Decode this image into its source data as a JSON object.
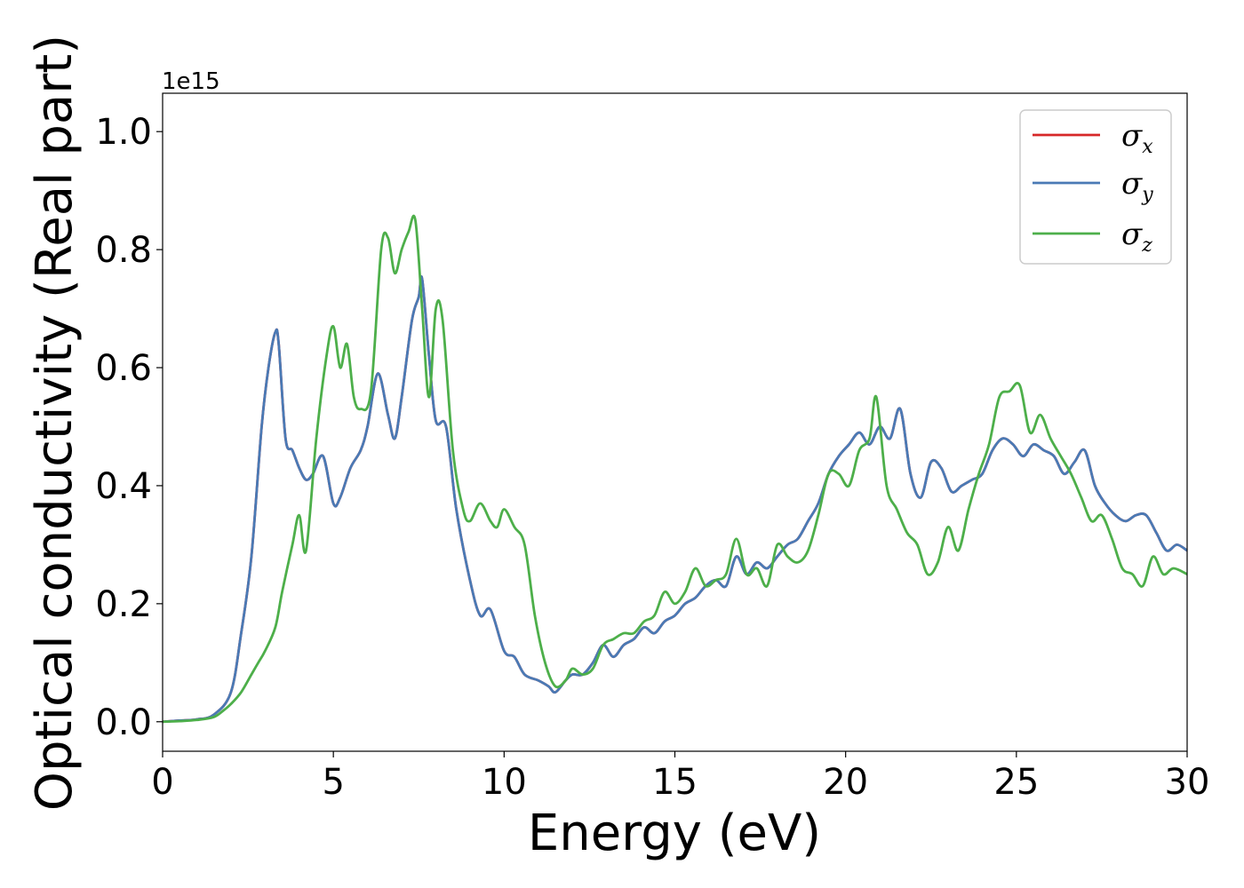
{
  "chart_data": {
    "type": "line",
    "xlabel": "Energy (eV)",
    "ylabel": "Optical conductivity (Real part)",
    "y_offset_text": "1e15",
    "xlim": [
      0,
      30
    ],
    "ylim": [
      -0.05,
      1.065
    ],
    "x_ticks": [
      0,
      5,
      10,
      15,
      20,
      25,
      30
    ],
    "x_tick_labels": [
      "0",
      "5",
      "10",
      "15",
      "20",
      "25",
      "30"
    ],
    "y_ticks": [
      0.0,
      0.2,
      0.4,
      0.6,
      0.8,
      1.0
    ],
    "y_tick_labels": [
      "0.0",
      "0.2",
      "0.4",
      "0.6",
      "0.8",
      "1.0"
    ],
    "grid": false,
    "legend_position": "top-right",
    "series": [
      {
        "name": "σx",
        "symbol": "σ",
        "subscript": "x",
        "color": "#d62728",
        "x": [
          0,
          0.5,
          1,
          1.5,
          2,
          2.3,
          2.6,
          2.9,
          3.1,
          3.3,
          3.4,
          3.6,
          3.8,
          4,
          4.2,
          4.4,
          4.7,
          5,
          5.2,
          5.5,
          5.8,
          6,
          6.3,
          6.6,
          6.8,
          7,
          7.3,
          7.5,
          7.6,
          7.8,
          8,
          8.3,
          8.6,
          9,
          9.3,
          9.6,
          10,
          10.3,
          10.6,
          11,
          11.3,
          11.5,
          11.8,
          12,
          12.3,
          12.6,
          12.9,
          13.2,
          13.5,
          13.8,
          14.1,
          14.4,
          14.7,
          15,
          15.3,
          15.6,
          15.9,
          16.2,
          16.5,
          16.8,
          17.1,
          17.4,
          17.7,
          18,
          18.3,
          18.6,
          18.9,
          19.2,
          19.5,
          19.8,
          20.1,
          20.4,
          20.7,
          21,
          21.3,
          21.6,
          21.9,
          22.2,
          22.5,
          22.8,
          23.1,
          23.4,
          23.7,
          24,
          24.3,
          24.6,
          24.9,
          25.2,
          25.5,
          25.8,
          26.1,
          26.4,
          26.7,
          27,
          27.3,
          27.6,
          27.9,
          28.2,
          28.5,
          28.8,
          29.1,
          29.4,
          29.7,
          30
        ],
        "y": [
          0,
          0.002,
          0.004,
          0.012,
          0.05,
          0.15,
          0.28,
          0.5,
          0.6,
          0.66,
          0.64,
          0.48,
          0.46,
          0.43,
          0.41,
          0.42,
          0.45,
          0.37,
          0.38,
          0.43,
          0.46,
          0.5,
          0.59,
          0.52,
          0.48,
          0.55,
          0.68,
          0.72,
          0.75,
          0.62,
          0.51,
          0.5,
          0.36,
          0.24,
          0.18,
          0.19,
          0.12,
          0.11,
          0.08,
          0.07,
          0.06,
          0.05,
          0.07,
          0.08,
          0.08,
          0.1,
          0.13,
          0.11,
          0.13,
          0.14,
          0.16,
          0.15,
          0.17,
          0.18,
          0.2,
          0.21,
          0.23,
          0.24,
          0.23,
          0.28,
          0.25,
          0.27,
          0.26,
          0.28,
          0.3,
          0.31,
          0.34,
          0.37,
          0.42,
          0.45,
          0.47,
          0.49,
          0.47,
          0.5,
          0.48,
          0.53,
          0.42,
          0.38,
          0.44,
          0.43,
          0.39,
          0.4,
          0.41,
          0.42,
          0.46,
          0.48,
          0.47,
          0.45,
          0.47,
          0.46,
          0.45,
          0.42,
          0.44,
          0.46,
          0.4,
          0.37,
          0.35,
          0.34,
          0.35,
          0.35,
          0.32,
          0.29,
          0.3,
          0.29
        ]
      },
      {
        "name": "σy",
        "symbol": "σ",
        "subscript": "y",
        "color": "#4a7ab5",
        "x": [
          0,
          0.5,
          1,
          1.5,
          2,
          2.3,
          2.6,
          2.9,
          3.1,
          3.3,
          3.4,
          3.6,
          3.8,
          4,
          4.2,
          4.4,
          4.7,
          5,
          5.2,
          5.5,
          5.8,
          6,
          6.3,
          6.6,
          6.8,
          7,
          7.3,
          7.5,
          7.6,
          7.8,
          8,
          8.3,
          8.6,
          9,
          9.3,
          9.6,
          10,
          10.3,
          10.6,
          11,
          11.3,
          11.5,
          11.8,
          12,
          12.3,
          12.6,
          12.9,
          13.2,
          13.5,
          13.8,
          14.1,
          14.4,
          14.7,
          15,
          15.3,
          15.6,
          15.9,
          16.2,
          16.5,
          16.8,
          17.1,
          17.4,
          17.7,
          18,
          18.3,
          18.6,
          18.9,
          19.2,
          19.5,
          19.8,
          20.1,
          20.4,
          20.7,
          21,
          21.3,
          21.6,
          21.9,
          22.2,
          22.5,
          22.8,
          23.1,
          23.4,
          23.7,
          24,
          24.3,
          24.6,
          24.9,
          25.2,
          25.5,
          25.8,
          26.1,
          26.4,
          26.7,
          27,
          27.3,
          27.6,
          27.9,
          28.2,
          28.5,
          28.8,
          29.1,
          29.4,
          29.7,
          30
        ],
        "y": [
          0,
          0.002,
          0.004,
          0.012,
          0.05,
          0.15,
          0.28,
          0.5,
          0.6,
          0.66,
          0.64,
          0.48,
          0.46,
          0.43,
          0.41,
          0.42,
          0.45,
          0.37,
          0.38,
          0.43,
          0.46,
          0.5,
          0.59,
          0.52,
          0.48,
          0.55,
          0.68,
          0.72,
          0.75,
          0.62,
          0.51,
          0.5,
          0.36,
          0.24,
          0.18,
          0.19,
          0.12,
          0.11,
          0.08,
          0.07,
          0.06,
          0.05,
          0.07,
          0.08,
          0.08,
          0.1,
          0.13,
          0.11,
          0.13,
          0.14,
          0.16,
          0.15,
          0.17,
          0.18,
          0.2,
          0.21,
          0.23,
          0.24,
          0.23,
          0.28,
          0.25,
          0.27,
          0.26,
          0.28,
          0.3,
          0.31,
          0.34,
          0.37,
          0.42,
          0.45,
          0.47,
          0.49,
          0.47,
          0.5,
          0.48,
          0.53,
          0.42,
          0.38,
          0.44,
          0.43,
          0.39,
          0.4,
          0.41,
          0.42,
          0.46,
          0.48,
          0.47,
          0.45,
          0.47,
          0.46,
          0.45,
          0.42,
          0.44,
          0.46,
          0.4,
          0.37,
          0.35,
          0.34,
          0.35,
          0.35,
          0.32,
          0.29,
          0.3,
          0.29
        ]
      },
      {
        "name": "σz",
        "symbol": "σ",
        "subscript": "z",
        "color": "#4daf4a",
        "x": [
          0,
          0.5,
          1,
          1.5,
          1.8,
          2,
          2.3,
          2.6,
          2.8,
          3,
          3.3,
          3.5,
          3.8,
          4,
          4.2,
          4.5,
          4.8,
          5,
          5.2,
          5.4,
          5.6,
          5.8,
          6.1,
          6.4,
          6.6,
          6.8,
          7,
          7.2,
          7.4,
          7.6,
          7.8,
          8,
          8.2,
          8.5,
          8.8,
          9,
          9.3,
          9.6,
          9.8,
          10,
          10.3,
          10.6,
          10.9,
          11.2,
          11.5,
          11.8,
          12,
          12.3,
          12.6,
          12.9,
          13.2,
          13.5,
          13.8,
          14.1,
          14.4,
          14.7,
          15,
          15.3,
          15.6,
          15.9,
          16.2,
          16.5,
          16.8,
          17.1,
          17.4,
          17.7,
          18,
          18.3,
          18.6,
          18.9,
          19.2,
          19.5,
          19.8,
          20.1,
          20.4,
          20.7,
          20.9,
          21.2,
          21.5,
          21.8,
          22.1,
          22.4,
          22.7,
          23,
          23.3,
          23.6,
          23.9,
          24.2,
          24.5,
          24.8,
          25.1,
          25.4,
          25.7,
          26,
          26.3,
          26.6,
          26.9,
          27.2,
          27.5,
          27.8,
          28.1,
          28.4,
          28.7,
          29,
          29.3,
          29.6,
          30
        ],
        "y": [
          0,
          0.001,
          0.003,
          0.008,
          0.02,
          0.03,
          0.05,
          0.08,
          0.1,
          0.12,
          0.16,
          0.22,
          0.3,
          0.35,
          0.29,
          0.48,
          0.62,
          0.67,
          0.6,
          0.64,
          0.55,
          0.53,
          0.56,
          0.8,
          0.82,
          0.76,
          0.8,
          0.83,
          0.85,
          0.7,
          0.55,
          0.7,
          0.68,
          0.46,
          0.36,
          0.34,
          0.37,
          0.34,
          0.33,
          0.36,
          0.33,
          0.3,
          0.18,
          0.1,
          0.06,
          0.07,
          0.09,
          0.08,
          0.09,
          0.13,
          0.14,
          0.15,
          0.15,
          0.17,
          0.18,
          0.22,
          0.2,
          0.22,
          0.26,
          0.23,
          0.24,
          0.25,
          0.31,
          0.25,
          0.26,
          0.23,
          0.3,
          0.28,
          0.27,
          0.29,
          0.35,
          0.42,
          0.42,
          0.4,
          0.46,
          0.48,
          0.55,
          0.4,
          0.36,
          0.32,
          0.3,
          0.25,
          0.27,
          0.33,
          0.29,
          0.36,
          0.42,
          0.47,
          0.55,
          0.56,
          0.57,
          0.49,
          0.52,
          0.48,
          0.45,
          0.42,
          0.38,
          0.34,
          0.35,
          0.31,
          0.26,
          0.25,
          0.23,
          0.28,
          0.25,
          0.26,
          0.25
        ]
      }
    ]
  }
}
